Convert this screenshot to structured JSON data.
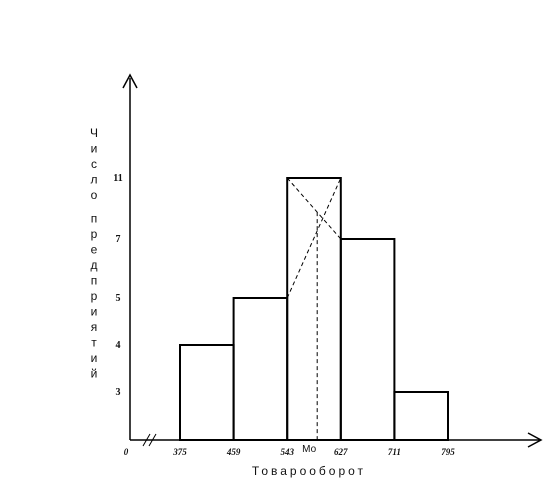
{
  "chart_data": {
    "type": "bar",
    "title": "",
    "xlabel": "Товарооборот",
    "ylabel": "Число предприятий",
    "x_origin_label": "0",
    "bin_edges": [
      375,
      459,
      543,
      627,
      711,
      795
    ],
    "x_tick_labels": [
      "375",
      "459",
      "543",
      "627",
      "711",
      "795"
    ],
    "values": [
      4,
      5,
      11,
      7,
      3
    ],
    "y_tick_labels": [
      "3",
      "4",
      "5",
      "7",
      "11"
    ],
    "modal_interval": [
      543,
      627
    ],
    "mode_label": "Мо",
    "mode_value": 590,
    "ylim": [
      0,
      13
    ],
    "axis_break": true,
    "grid": false,
    "legend": "none"
  },
  "colors": {
    "ink": "#000000",
    "background": "#ffffff"
  }
}
